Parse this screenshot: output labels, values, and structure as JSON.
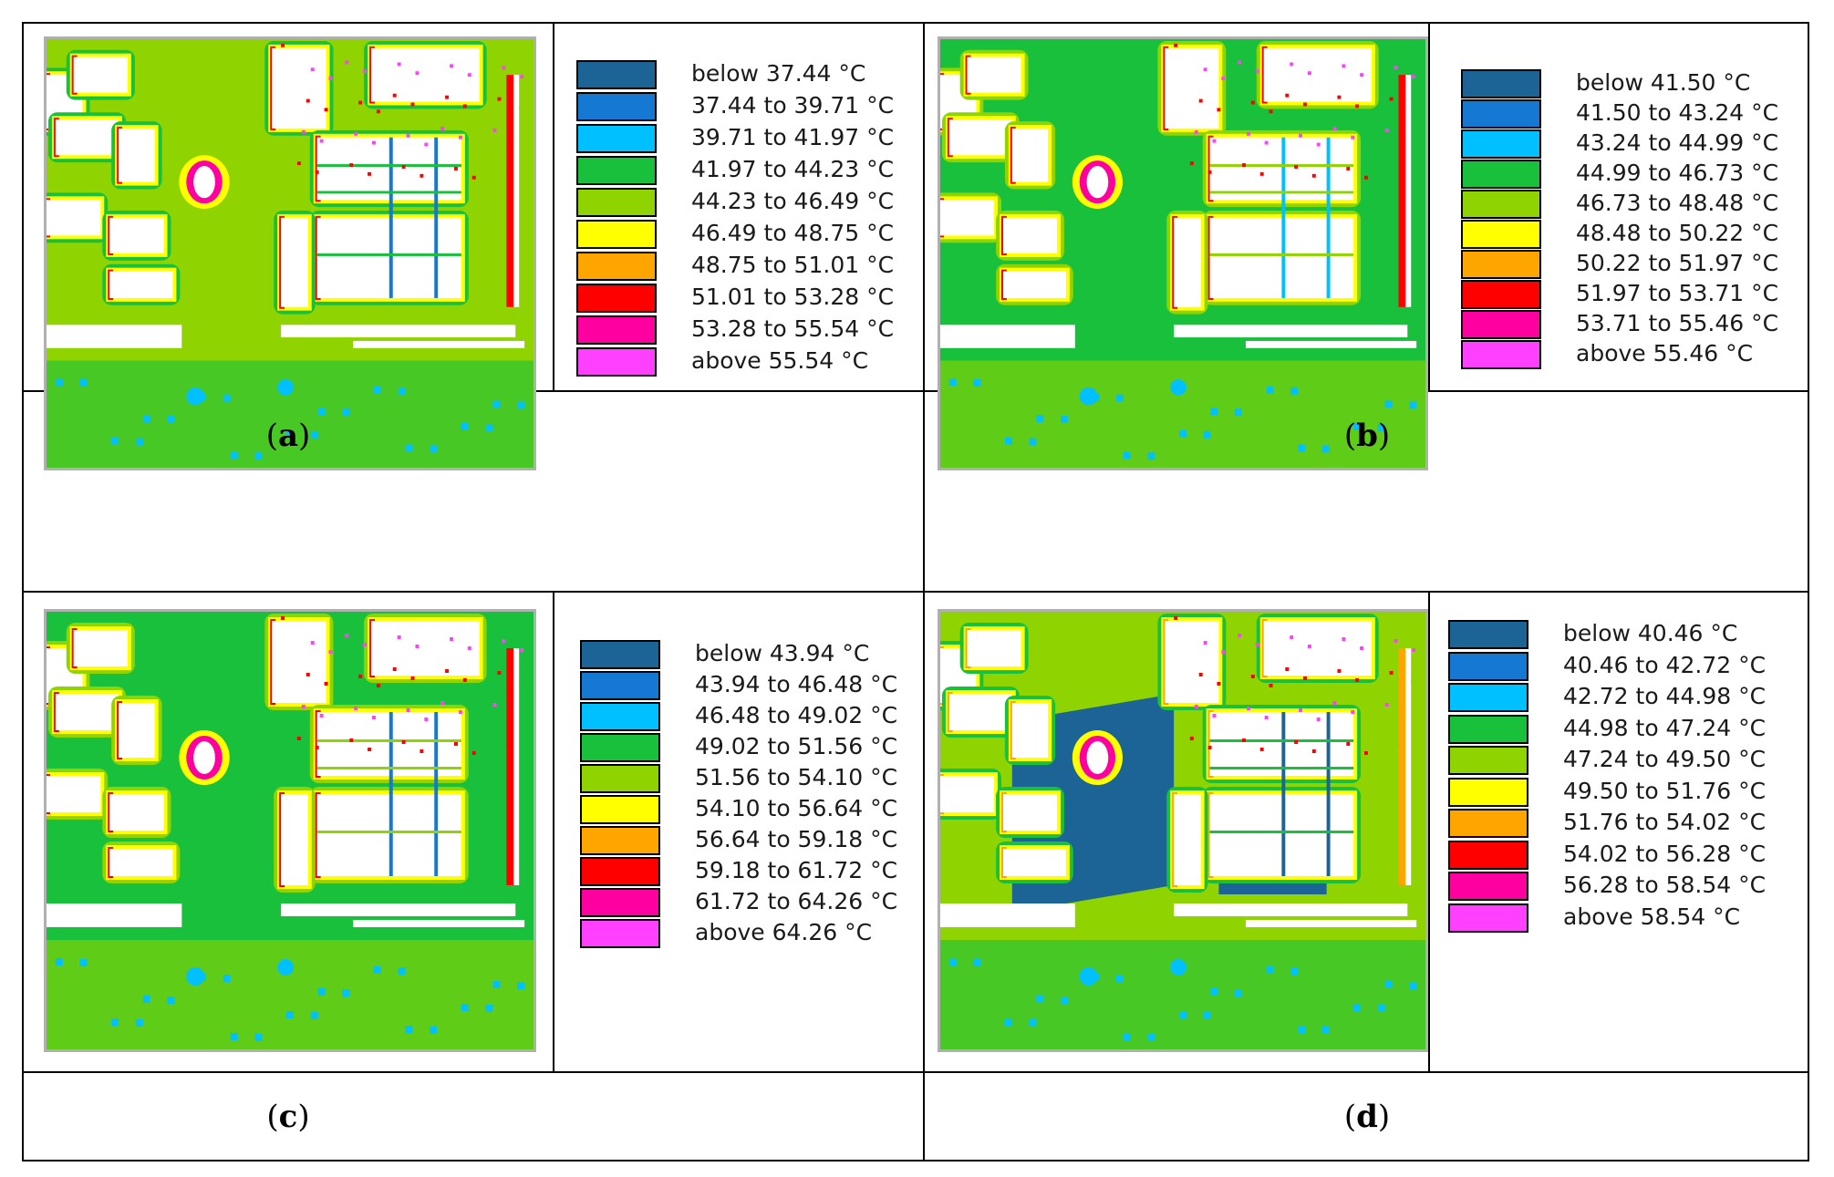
{
  "colors": {
    "c1": "#1d6496",
    "c2": "#1578d2",
    "c3": "#00c0ff",
    "c4": "#18c03c",
    "c5": "#8fd400",
    "c6": "#ffff00",
    "c7": "#ffa500",
    "c8": "#ff0000",
    "c9": "#ff00a0",
    "c10": "#ff40ff",
    "building": "#ffffff"
  },
  "panels": [
    {
      "caption": "a",
      "legend": [
        {
          "label": "below 37.44 °C",
          "color": "#1d6496"
        },
        {
          "label": "37.44 to 39.71 °C",
          "color": "#1578d2"
        },
        {
          "label": "39.71 to 41.97 °C",
          "color": "#00c0ff"
        },
        {
          "label": "41.97 to 44.23 °C",
          "color": "#18c03c"
        },
        {
          "label": "44.23 to 46.49 °C",
          "color": "#8fd400"
        },
        {
          "label": "46.49 to 48.75 °C",
          "color": "#ffff00"
        },
        {
          "label": "48.75 to 51.01 °C",
          "color": "#ffa500"
        },
        {
          "label": "51.01 to 53.28 °C",
          "color": "#ff0000"
        },
        {
          "label": "53.28 to 55.54 °C",
          "color": "#ff00a0"
        },
        {
          "label": "above 55.54 °C",
          "color": "#ff40ff"
        }
      ]
    },
    {
      "caption": "b",
      "legend": [
        {
          "label": "below 41.50 °C",
          "color": "#1d6496"
        },
        {
          "label": "41.50 to 43.24 °C",
          "color": "#1578d2"
        },
        {
          "label": "43.24 to 44.99 °C",
          "color": "#00c0ff"
        },
        {
          "label": "44.99 to 46.73 °C",
          "color": "#18c03c"
        },
        {
          "label": "46.73 to 48.48 °C",
          "color": "#8fd400"
        },
        {
          "label": "48.48 to 50.22 °C",
          "color": "#ffff00"
        },
        {
          "label": "50.22 to 51.97 °C",
          "color": "#ffa500"
        },
        {
          "label": "51.97 to 53.71 °C",
          "color": "#ff0000"
        },
        {
          "label": "53.71 to 55.46 °C",
          "color": "#ff00a0"
        },
        {
          "label": "above 55.46 °C",
          "color": "#ff40ff"
        }
      ]
    },
    {
      "caption": "c",
      "legend": [
        {
          "label": "below 43.94 °C",
          "color": "#1d6496"
        },
        {
          "label": "43.94 to 46.48 °C",
          "color": "#1578d2"
        },
        {
          "label": "46.48 to 49.02 °C",
          "color": "#00c0ff"
        },
        {
          "label": "49.02 to 51.56 °C",
          "color": "#18c03c"
        },
        {
          "label": "51.56 to 54.10 °C",
          "color": "#8fd400"
        },
        {
          "label": "54.10 to 56.64 °C",
          "color": "#ffff00"
        },
        {
          "label": "56.64 to 59.18 °C",
          "color": "#ffa500"
        },
        {
          "label": "59.18 to 61.72 °C",
          "color": "#ff0000"
        },
        {
          "label": "61.72 to 64.26 °C",
          "color": "#ff00a0"
        },
        {
          "label": "above 64.26 °C",
          "color": "#ff40ff"
        }
      ]
    },
    {
      "caption": "d",
      "legend": [
        {
          "label": "below 40.46 °C",
          "color": "#1d6496"
        },
        {
          "label": "40.46 to 42.72 °C",
          "color": "#1578d2"
        },
        {
          "label": "42.72 to 44.98 °C",
          "color": "#00c0ff"
        },
        {
          "label": "44.98 to 47.24 °C",
          "color": "#18c03c"
        },
        {
          "label": "47.24 to 49.50 °C",
          "color": "#8fd400"
        },
        {
          "label": "49.50 to 51.76 °C",
          "color": "#ffff00"
        },
        {
          "label": "51.76 to 54.02 °C",
          "color": "#ffa500"
        },
        {
          "label": "54.02 to 56.28 °C",
          "color": "#ff0000"
        },
        {
          "label": "56.28 to 58.54 °C",
          "color": "#ff00a0"
        },
        {
          "label": "above 58.54 °C",
          "color": "#ff40ff"
        }
      ]
    }
  ]
}
